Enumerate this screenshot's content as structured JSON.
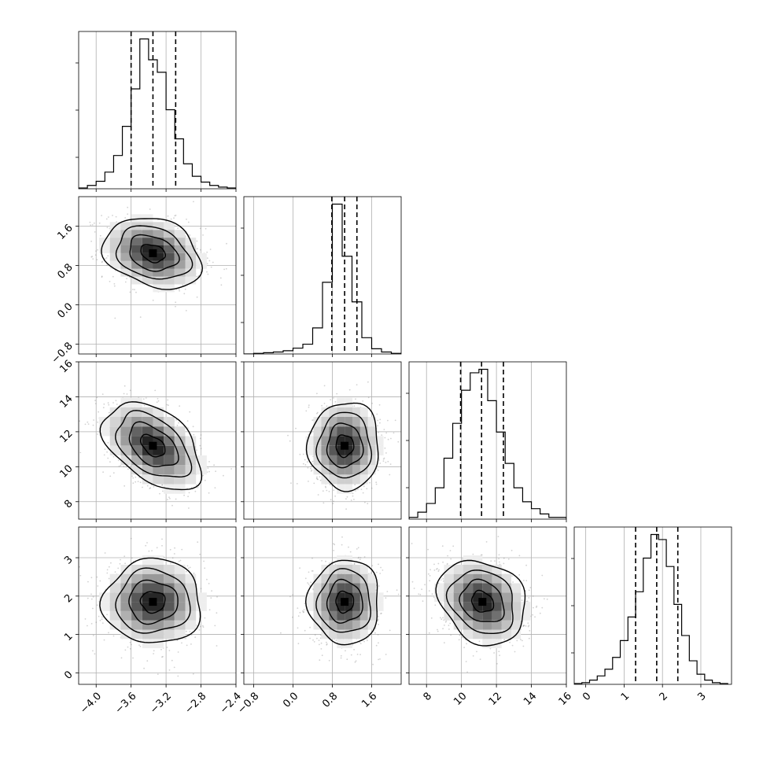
{
  "chart_data": {
    "type": "corner",
    "title": "",
    "grid": true,
    "parameters": [
      {
        "index": 0,
        "label": "",
        "range": [
          -4.2,
          -2.4
        ],
        "ticks": [
          -4.0,
          -3.6,
          -3.2,
          -2.8,
          -2.4
        ],
        "tick_labels": [
          "−4.0",
          "−3.6",
          "−3.2",
          "−2.8",
          "−2.4"
        ],
        "quantiles": [
          -3.6,
          -3.35,
          -3.09
        ],
        "hist_bins": [
          -4.2,
          -4.1,
          -4.0,
          -3.9,
          -3.8,
          -3.7,
          -3.6,
          -3.5,
          -3.4,
          -3.3,
          -3.2,
          -3.1,
          -3.0,
          -2.9,
          -2.8,
          -2.7,
          -2.6,
          -2.5,
          -2.4
        ],
        "hist_counts": [
          1,
          4,
          9,
          20,
          40,
          75,
          120,
          180,
          155,
          140,
          95,
          60,
          30,
          15,
          8,
          4,
          2,
          1
        ]
      },
      {
        "index": 1,
        "label": "",
        "range": [
          -1.0,
          2.2
        ],
        "ticks": [
          -0.8,
          0.0,
          0.8,
          1.6
        ],
        "tick_labels": [
          "−0.8",
          "0.0",
          "0.8",
          "1.6"
        ],
        "quantiles": [
          0.79,
          1.05,
          1.3
        ],
        "hist_bins": [
          -1.0,
          -0.8,
          -0.6,
          -0.4,
          -0.2,
          0.0,
          0.2,
          0.4,
          0.6,
          0.8,
          1.0,
          1.2,
          1.4,
          1.6,
          1.8,
          2.0,
          2.2
        ],
        "hist_counts": [
          0,
          1,
          2,
          3,
          5,
          9,
          15,
          40,
          110,
          230,
          150,
          80,
          25,
          8,
          3,
          1
        ]
      },
      {
        "index": 2,
        "label": "",
        "range": [
          7.0,
          16.0
        ],
        "ticks": [
          8,
          10,
          12,
          14,
          16
        ],
        "tick_labels": [
          "8",
          "10",
          "12",
          "14",
          "16"
        ],
        "quantiles": [
          9.95,
          11.15,
          12.4
        ],
        "hist_bins": [
          7.0,
          7.5,
          8.0,
          8.5,
          9.0,
          9.5,
          10.0,
          10.5,
          11.0,
          11.5,
          12.0,
          12.5,
          13.0,
          13.5,
          14.0,
          14.5,
          15.0,
          15.5,
          16.0
        ],
        "hist_counts": [
          1,
          4,
          9,
          18,
          35,
          55,
          74,
          84,
          86,
          68,
          50,
          32,
          18,
          10,
          6,
          3,
          1,
          1
        ]
      },
      {
        "index": 3,
        "label": "",
        "range": [
          -0.3,
          3.8
        ],
        "ticks": [
          0,
          1,
          2,
          3
        ],
        "tick_labels": [
          "0",
          "1",
          "2",
          "3"
        ],
        "quantiles": [
          1.3,
          1.85,
          2.4
        ],
        "hist_bins": [
          -0.3,
          -0.1,
          0.1,
          0.3,
          0.5,
          0.7,
          0.9,
          1.1,
          1.3,
          1.5,
          1.7,
          1.9,
          2.1,
          2.3,
          2.5,
          2.7,
          2.9,
          3.1,
          3.3,
          3.5,
          3.7
        ],
        "hist_counts": [
          1,
          2,
          5,
          10,
          18,
          32,
          52,
          80,
          110,
          150,
          178,
          172,
          140,
          95,
          58,
          28,
          12,
          5,
          2,
          1
        ]
      }
    ],
    "pairs": [
      {
        "x": 0,
        "y": 1,
        "center": [
          -3.35,
          1.05
        ],
        "sigma": [
          0.28,
          0.36
        ],
        "rho": -0.25
      },
      {
        "x": 0,
        "y": 2,
        "center": [
          -3.35,
          11.2
        ],
        "sigma": [
          0.28,
          1.25
        ],
        "rho": -0.45
      },
      {
        "x": 1,
        "y": 2,
        "center": [
          1.05,
          11.2
        ],
        "sigma": [
          0.36,
          1.25
        ],
        "rho": 0.0
      },
      {
        "x": 0,
        "y": 3,
        "center": [
          -3.35,
          1.85
        ],
        "sigma": [
          0.28,
          0.55
        ],
        "rho": 0.0
      },
      {
        "x": 1,
        "y": 3,
        "center": [
          1.05,
          1.85
        ],
        "sigma": [
          0.36,
          0.55
        ],
        "rho": 0.0
      },
      {
        "x": 2,
        "y": 3,
        "center": [
          11.2,
          1.85
        ],
        "sigma": [
          1.25,
          0.55
        ],
        "rho": -0.2
      }
    ],
    "contour_levels_sigma": [
      0.5,
      1.0,
      1.5,
      2.0
    ]
  }
}
